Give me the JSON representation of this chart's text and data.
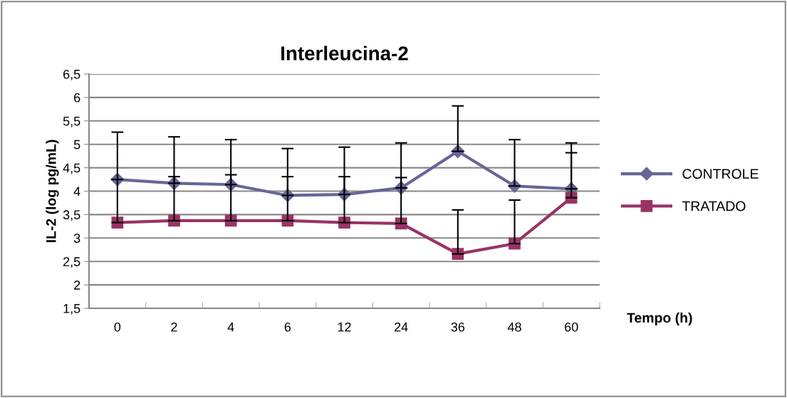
{
  "chart_data": {
    "type": "line",
    "title": "Interleucina-2",
    "xlabel": "Tempo (h)",
    "ylabel": "IL-2 (log pg/mL)",
    "categories": [
      "0",
      "2",
      "4",
      "6",
      "12",
      "24",
      "36",
      "48",
      "60"
    ],
    "series": [
      {
        "name": "CONTROLE",
        "color": "#666699",
        "marker": "diamond",
        "values": [
          4.25,
          4.17,
          4.14,
          3.91,
          3.93,
          4.07,
          4.85,
          4.11,
          4.05
        ],
        "errors": [
          [
            4.25,
            5.26
          ],
          [
            4.17,
            5.16
          ],
          [
            4.14,
            5.1
          ],
          [
            3.91,
            4.91
          ],
          [
            3.93,
            4.94
          ],
          [
            4.07,
            5.03
          ],
          [
            4.85,
            5.82
          ],
          [
            4.11,
            5.1
          ],
          [
            4.05,
            5.03
          ]
        ]
      },
      {
        "name": "TRATADO",
        "color": "#993366",
        "marker": "square",
        "values": [
          3.33,
          3.37,
          3.37,
          3.37,
          3.33,
          3.31,
          2.66,
          2.88,
          3.86
        ],
        "errors": [
          [
            3.33,
            4.25
          ],
          [
            3.37,
            4.31
          ],
          [
            3.37,
            4.35
          ],
          [
            3.37,
            4.31
          ],
          [
            3.33,
            4.31
          ],
          [
            3.31,
            4.29
          ],
          [
            2.66,
            3.6
          ],
          [
            2.88,
            3.81
          ],
          [
            3.86,
            4.82
          ]
        ]
      }
    ],
    "ylim": [
      1.5,
      6.5
    ],
    "yticks": [
      {
        "value": 1.5,
        "label": "1,5"
      },
      {
        "value": 2,
        "label": "2"
      },
      {
        "value": 2.5,
        "label": "2,5"
      },
      {
        "value": 3,
        "label": "3"
      },
      {
        "value": 3.5,
        "label": "3,5"
      },
      {
        "value": 4,
        "label": "4"
      },
      {
        "value": 4.5,
        "label": "4,5"
      },
      {
        "value": 5,
        "label": "5"
      },
      {
        "value": 5.5,
        "label": "5,5"
      },
      {
        "value": 6,
        "label": "6"
      },
      {
        "value": 6.5,
        "label": "6,5"
      }
    ],
    "grid": "y",
    "legend": "right",
    "line_style": "solid"
  }
}
